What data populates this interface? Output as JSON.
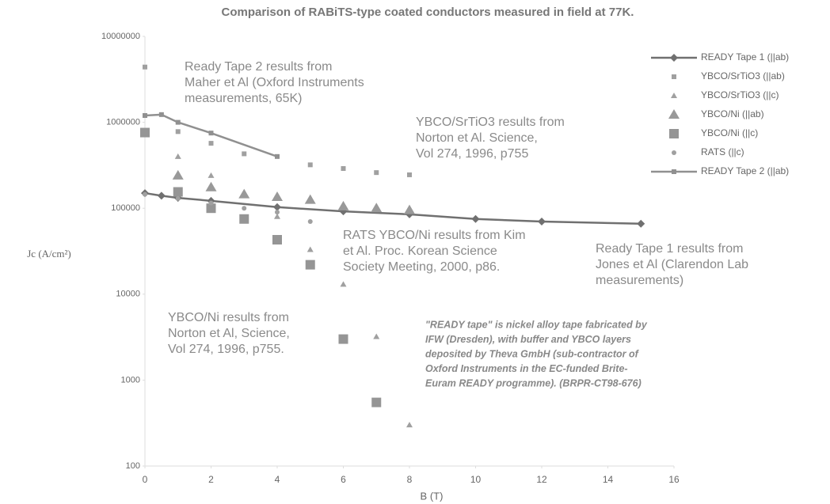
{
  "chart_data": {
    "type": "scatter",
    "title": "Comparison of RABiTS-type coated conductors measured in field at 77K.",
    "xlabel": "B (T)",
    "ylabel": "Jc (A/cm²)",
    "xlim": [
      0,
      16
    ],
    "xticks": [
      0,
      2,
      4,
      6,
      8,
      10,
      12,
      14,
      16
    ],
    "ylim": [
      100,
      10000000
    ],
    "yticks": [
      100,
      1000,
      10000,
      100000,
      1000000,
      10000000
    ],
    "log_y": true,
    "grid": false,
    "legend": "upper right",
    "series": [
      {
        "name": "READY Tape 1 (||ab)",
        "color": "#707070",
        "marker": "diamond",
        "line": true,
        "x": [
          0,
          0.5,
          1,
          2,
          4,
          6,
          8,
          10,
          12,
          15
        ],
        "values": [
          150000,
          140000,
          132000,
          122000,
          103000,
          92000,
          85000,
          75000,
          70000,
          66000
        ]
      },
      {
        "name": "YBCO/SrTiO3 (||ab)",
        "color": "#a0a0a0",
        "marker": "square",
        "line": false,
        "x": [
          0,
          1,
          2,
          3,
          5,
          6,
          7,
          8
        ],
        "values": [
          4400000,
          780000,
          570000,
          430000,
          320000,
          290000,
          260000,
          245000
        ]
      },
      {
        "name": "YBCO/SrTiO3 (||c)",
        "color": "#a0a0a0",
        "marker": "triangle",
        "line": false,
        "x": [
          1,
          2,
          3,
          4,
          5,
          6,
          7,
          8
        ],
        "values": [
          400000,
          240000,
          150000,
          80000,
          33000,
          13000,
          3200,
          300
        ]
      },
      {
        "name": "YBCO/Ni (||ab)",
        "color": "#999999",
        "marker": "big-triangle",
        "line": false,
        "x": [
          1,
          2,
          3,
          4,
          5,
          6,
          7,
          8
        ],
        "values": [
          240000,
          175000,
          145000,
          135000,
          125000,
          105000,
          100000,
          95000
        ]
      },
      {
        "name": "YBCO/Ni (||c)",
        "color": "#959595",
        "marker": "big-square",
        "line": false,
        "x": [
          0,
          1,
          2,
          3,
          4,
          5,
          6,
          7
        ],
        "values": [
          760000,
          155000,
          100000,
          75000,
          43000,
          22000,
          3000,
          550
        ]
      },
      {
        "name": "RATS (||c)",
        "color": "#a0a0a0",
        "marker": "circle",
        "line": false,
        "x": [
          0,
          1,
          2,
          3,
          4,
          5
        ],
        "values": [
          145000,
          130000,
          115000,
          100000,
          90000,
          70000
        ]
      },
      {
        "name": "READY Tape 2 (||ab)",
        "color": "#909090",
        "marker": "square",
        "line": true,
        "x": [
          0,
          0.5,
          1,
          2,
          4
        ],
        "values": [
          1200000,
          1230000,
          1000000,
          750000,
          400000
        ]
      }
    ],
    "annotations": [
      [
        "Ready Tape 2 results from",
        "Maher et Al (Oxford Instruments",
        "measurements, 65K)"
      ],
      [
        "YBCO/SrTiO3 results from",
        "Norton et Al. Science,",
        "Vol 274, 1996, p755"
      ],
      [
        "RATS YBCO/Ni results from Kim",
        "et Al. Proc. Korean Science",
        "Society Meeting, 2000, p86."
      ],
      [
        "Ready Tape 1 results from",
        "Jones et Al (Clarendon Lab",
        "measurements)"
      ],
      [
        "YBCO/Ni results from",
        "Norton et Al, Science,",
        "Vol 274, 1996, p755."
      ],
      [
        "\"READY tape\" is nickel alloy tape fabricated by",
        "IFW (Dresden), with buffer and YBCO layers",
        "deposited by Theva GmbH (sub-contractor of",
        "Oxford Instruments in the EC-funded Brite-",
        "Euram READY programme). (BRPR-CT98-676)"
      ]
    ]
  }
}
